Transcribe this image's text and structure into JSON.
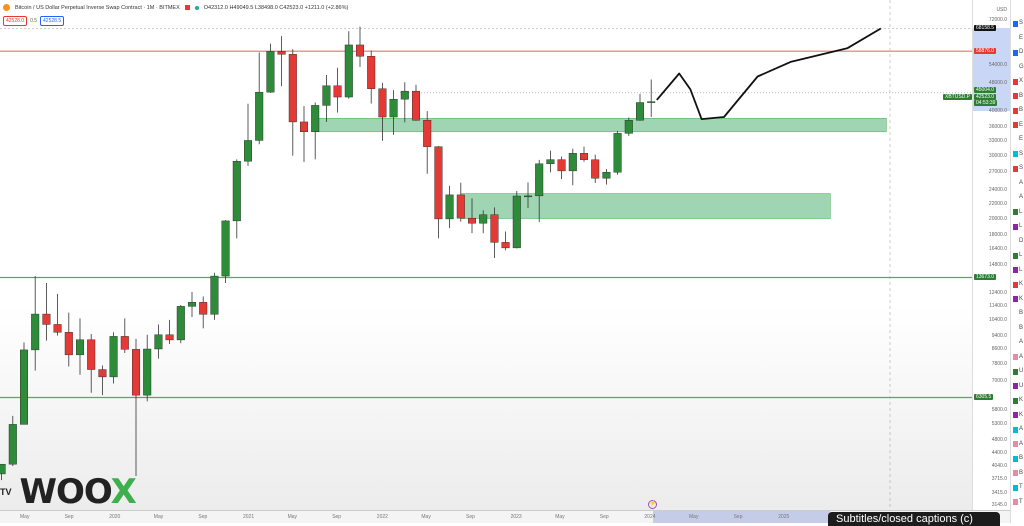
{
  "header": {
    "symbol": "Bitcoin / US Dollar Perpetual Inverse Swap Contract · 1M · BITMEX",
    "ohlc": "O42312.0 H49049.5 L38498.0 C42523.0 +1211.0 (+2.86%)",
    "sell": "42528.0",
    "spread": "0.5",
    "buy": "42528.5"
  },
  "price_axis": {
    "currency": "USD",
    "labels": [
      "72000.0",
      "54000.0",
      "48000.0",
      "40000.0",
      "36000.0",
      "33000.0",
      "30000.0",
      "27000.0",
      "24000.0",
      "22000.0",
      "20000.0",
      "18000.0",
      "16400.0",
      "14800.0",
      "12400.0",
      "11400.0",
      "10400.0",
      "9400.0",
      "8600.0",
      "7800.0",
      "7000.0",
      "5800.0",
      "5300.0",
      "4800.0",
      "4400.0",
      "4040.0",
      "3715.0",
      "3415.0",
      "3145.0"
    ],
    "badges": [
      {
        "text": "68158.5",
        "color": "#111111",
        "price": 68158.5
      },
      {
        "text": "58876.0",
        "color": "#e53935",
        "price": 58876
      },
      {
        "text": "45004.0",
        "color": "#2e7d32",
        "price": 45004
      },
      {
        "text": "42523.0",
        "color": "#2e7d32",
        "price": 42523
      },
      {
        "text": "04:53:39",
        "color": "#2e7d32",
        "price": 40800
      },
      {
        "text": "13673.0",
        "color": "#2e7d32",
        "price": 13673
      },
      {
        "text": "6305.5",
        "color": "#2e7d32",
        "price": 6305.5
      }
    ],
    "symbol_tag": "XBTUSD.P"
  },
  "time_axis": {
    "labels": [
      "May",
      "Sep",
      "2020",
      "May",
      "Sep",
      "2021",
      "May",
      "Sep",
      "2022",
      "May",
      "Sep",
      "2023",
      "May",
      "Sep",
      "2024",
      "May",
      "Sep",
      "2025"
    ]
  },
  "watchlist": [
    {
      "l": "S",
      "c": "#1e66f5"
    },
    {
      "l": "E",
      "c": ""
    },
    {
      "l": "D",
      "c": "#1e66f5"
    },
    {
      "l": "G",
      "c": ""
    },
    {
      "l": "X",
      "c": "#e53935"
    },
    {
      "l": "B",
      "c": "#e53935"
    },
    {
      "l": "B",
      "c": "#e53935"
    },
    {
      "l": "E",
      "c": "#e53935"
    },
    {
      "l": "E",
      "c": ""
    },
    {
      "l": "S",
      "c": "#00bcd4"
    },
    {
      "l": "S",
      "c": "#e53935"
    },
    {
      "l": "A",
      "c": ""
    },
    {
      "l": "A",
      "c": ""
    },
    {
      "l": "L",
      "c": "#2e7d32"
    },
    {
      "l": "L",
      "c": "#8e24aa"
    },
    {
      "l": "D",
      "c": ""
    },
    {
      "l": "L",
      "c": "#2e7d32"
    },
    {
      "l": "L",
      "c": "#8e24aa"
    },
    {
      "l": "K",
      "c": "#e53935"
    },
    {
      "l": "K",
      "c": "#8e24aa"
    },
    {
      "l": "B",
      "c": ""
    },
    {
      "l": "B",
      "c": ""
    },
    {
      "l": "A",
      "c": ""
    },
    {
      "l": "A",
      "c": "#e88aa0"
    },
    {
      "l": "U",
      "c": "#2e7d32"
    },
    {
      "l": "U",
      "c": "#8e24aa"
    },
    {
      "l": "K",
      "c": "#2e7d32"
    },
    {
      "l": "K",
      "c": "#8e24aa"
    },
    {
      "l": "A",
      "c": "#00bcd4"
    },
    {
      "l": "A",
      "c": "#e88aa0"
    },
    {
      "l": "B",
      "c": "#00bcd4"
    },
    {
      "l": "B",
      "c": "#e88aa0"
    },
    {
      "l": "T",
      "c": "#00bcd4"
    },
    {
      "l": "T",
      "c": "#e88aa0"
    }
  ],
  "logo": {
    "text": "WOOX",
    "tv": "TV"
  },
  "captions_tooltip": "Subtitles/closed captions (c)",
  "colors": {
    "up": "#2e8b3a",
    "down": "#e53935",
    "zone": "#7fc79a",
    "resistance": "#e57373",
    "support": "#4caf50"
  },
  "chart_data": {
    "type": "candlestick",
    "scale": "log",
    "ylim": [
      3000,
      80000
    ],
    "start": "2019-03",
    "ohlc": [
      [
        3850,
        4100,
        3700,
        4100
      ],
      [
        4100,
        5600,
        4050,
        5300
      ],
      [
        5300,
        9000,
        5300,
        8570
      ],
      [
        8570,
        13800,
        7500,
        10800
      ],
      [
        10800,
        13200,
        9100,
        10100
      ],
      [
        10100,
        12300,
        9400,
        9600
      ],
      [
        9600,
        10900,
        7700,
        8300
      ],
      [
        8300,
        10500,
        7300,
        9150
      ],
      [
        9150,
        9500,
        6500,
        7550
      ],
      [
        7550,
        7750,
        6400,
        7200
      ],
      [
        7200,
        9600,
        6900,
        9350
      ],
      [
        9350,
        10500,
        8400,
        8600
      ],
      [
        8600,
        9200,
        3800,
        6400
      ],
      [
        6400,
        9450,
        6150,
        8620
      ],
      [
        8620,
        10100,
        8100,
        9450
      ],
      [
        9450,
        10400,
        8900,
        9140
      ],
      [
        9140,
        11450,
        8950,
        11350
      ],
      [
        11350,
        12450,
        10600,
        11650
      ],
      [
        11650,
        12100,
        9850,
        10780
      ],
      [
        10780,
        14100,
        10400,
        13800
      ],
      [
        13800,
        19800,
        13200,
        19700
      ],
      [
        19700,
        29300,
        17600,
        28950
      ],
      [
        28950,
        41950,
        28100,
        33100
      ],
      [
        33100,
        58400,
        32300,
        45200
      ],
      [
        45200,
        61800,
        45000,
        58800
      ],
      [
        58800,
        64900,
        47000,
        57700
      ],
      [
        57700,
        59600,
        30000,
        37300
      ],
      [
        37300,
        41300,
        28800,
        35000
      ],
      [
        35000,
        42300,
        29300,
        41500
      ],
      [
        41500,
        50500,
        37300,
        47100
      ],
      [
        47100,
        52900,
        39600,
        43800
      ],
      [
        43800,
        67000,
        43300,
        61300
      ],
      [
        61300,
        69000,
        53200,
        57000
      ],
      [
        57000,
        59100,
        42000,
        46200
      ],
      [
        46200,
        48000,
        33000,
        38500
      ],
      [
        38500,
        45800,
        34300,
        43200
      ],
      [
        43200,
        48200,
        37200,
        45500
      ],
      [
        45500,
        47400,
        37600,
        37700
      ],
      [
        37700,
        40000,
        26700,
        31800
      ],
      [
        31800,
        31900,
        17600,
        19950
      ],
      [
        19950,
        24700,
        18800,
        23300
      ],
      [
        23300,
        25200,
        19600,
        20050
      ],
      [
        20050,
        22800,
        18200,
        19400
      ],
      [
        19400,
        21100,
        18200,
        20500
      ],
      [
        20500,
        21500,
        15500,
        17150
      ],
      [
        17150,
        18400,
        16300,
        16550
      ],
      [
        16550,
        23900,
        16500,
        23130
      ],
      [
        23130,
        25250,
        21400,
        23150
      ],
      [
        23150,
        29200,
        19550,
        28470
      ],
      [
        28470,
        31000,
        26950,
        29250
      ],
      [
        29250,
        29850,
        25800,
        27200
      ],
      [
        27200,
        31400,
        24800,
        30480
      ],
      [
        30480,
        31800,
        28850,
        29230
      ],
      [
        29230,
        30200,
        25150,
        25940
      ],
      [
        25940,
        27500,
        24900,
        26970
      ],
      [
        26970,
        35200,
        26550,
        34650
      ],
      [
        34650,
        38400,
        34100,
        37720
      ],
      [
        37720,
        44700,
        37600,
        42280
      ],
      [
        42312,
        49049.5,
        38498,
        42523
      ]
    ],
    "levels": [
      {
        "price": 58876,
        "kind": "resistance"
      },
      {
        "price": 13673,
        "kind": "support"
      },
      {
        "price": 6305.5,
        "kind": "support"
      }
    ],
    "zones": [
      {
        "from": "2021-07",
        "to": "2025-10",
        "low": 35000,
        "high": 38200
      },
      {
        "from": "2022-08",
        "to": "2025-05",
        "low": 20000,
        "high": 23500
      }
    ],
    "projection": [
      [
        "2024-01",
        43000
      ],
      [
        "2024-03",
        51000
      ],
      [
        "2024-04",
        46000
      ],
      [
        "2024-05",
        38000
      ],
      [
        "2024-07",
        38500
      ],
      [
        "2024-10",
        50000
      ],
      [
        "2025-01",
        55000
      ],
      [
        "2025-06",
        60000
      ],
      [
        "2025-09",
        68158.5
      ]
    ]
  }
}
